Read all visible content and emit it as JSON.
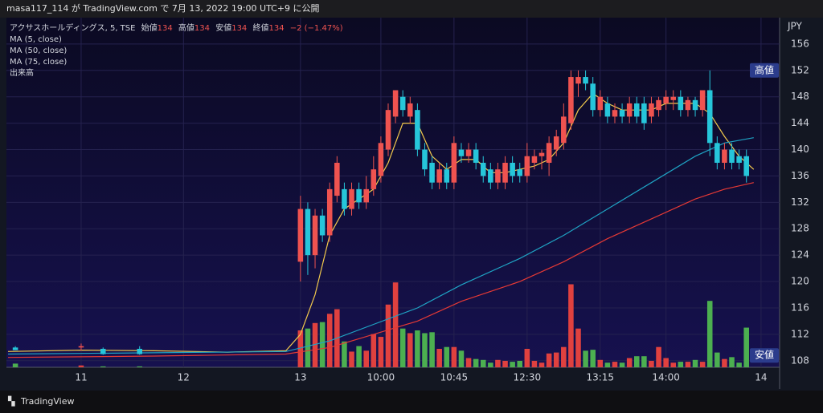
{
  "header": "masa117_114 が TradingView.com で 7月 13, 2022 19:00 UTC+9 に公開",
  "brand": "TradingView",
  "chart_data": {
    "type": "candlestick",
    "symbol": "アクサスホールディングス, 5, TSE",
    "ohlc_legend": [
      {
        "label": "始値",
        "value": 134
      },
      {
        "label": "高値",
        "value": 134
      },
      {
        "label": "安値",
        "value": 134
      },
      {
        "label": "終値",
        "value": 134
      }
    ],
    "change_text": "−2 (−1.47%)",
    "currency": "JPY",
    "volume_name": "出来高",
    "up_color": "#ef5350",
    "down_color": "#26c6da",
    "volume_up_color": "#e0413f",
    "volume_down_color": "#4caf50",
    "ylim": [
      107,
      160
    ],
    "yticks": [
      108,
      112,
      116,
      120,
      124,
      128,
      132,
      136,
      140,
      144,
      148,
      152,
      156
    ],
    "volume_lim": [
      0,
      100
    ],
    "xlim": [
      0,
      104
    ],
    "xticks": [
      {
        "value": 10,
        "label": "11"
      },
      {
        "value": 24,
        "label": "12"
      },
      {
        "value": 40,
        "label": "13"
      },
      {
        "value": 51,
        "label": "10:00"
      },
      {
        "value": 61,
        "label": "10:45"
      },
      {
        "value": 71,
        "label": "12:30"
      },
      {
        "value": 81,
        "label": "13:15"
      },
      {
        "value": 90,
        "label": "14:00"
      },
      {
        "value": 103,
        "label": "14"
      }
    ],
    "grid": true,
    "x": [
      1,
      10,
      13,
      18,
      40,
      41,
      42,
      43,
      44,
      45,
      46,
      47,
      48,
      49,
      50,
      51,
      52,
      53,
      54,
      55,
      56,
      57,
      58,
      59,
      60,
      61,
      62,
      63,
      64,
      65,
      66,
      67,
      68,
      69,
      70,
      71,
      72,
      73,
      74,
      75,
      76,
      77,
      78,
      79,
      80,
      81,
      82,
      83,
      84,
      85,
      86,
      87,
      88,
      89,
      90,
      91,
      92,
      93,
      94,
      95,
      96,
      97,
      98,
      99,
      100,
      101
    ],
    "open": [
      110,
      110,
      109.8,
      109.8,
      123,
      131,
      124,
      130,
      127,
      133,
      134,
      131,
      134,
      132,
      134,
      136,
      140,
      145,
      148,
      145,
      146,
      140,
      138,
      135,
      137,
      135,
      140,
      139,
      140,
      138,
      137,
      135,
      135,
      138,
      137,
      136,
      138,
      139,
      138,
      140,
      141,
      144,
      150,
      151,
      150,
      146,
      147,
      145,
      146,
      145,
      147,
      147,
      145,
      146,
      147,
      147.5,
      148,
      146,
      147.5,
      146,
      149,
      141,
      138,
      140,
      139,
      139
    ],
    "high": [
      110.2,
      110.6,
      110,
      110.2,
      133,
      132,
      131,
      131,
      135,
      139,
      135,
      135,
      135,
      136,
      139,
      142,
      147,
      149,
      149,
      148,
      147,
      141,
      139,
      138,
      138,
      142,
      141,
      141,
      141,
      139,
      138,
      138,
      139,
      139,
      138,
      141,
      140,
      140,
      142,
      143,
      147,
      152,
      152,
      152,
      151,
      149,
      148,
      147,
      147,
      148,
      148,
      148,
      148,
      148,
      149,
      149,
      149,
      148,
      148,
      149,
      152,
      142,
      141,
      141,
      140,
      140
    ],
    "low": [
      109.6,
      109.5,
      108.9,
      108.9,
      120,
      121,
      122,
      126,
      126,
      132,
      130,
      130,
      131,
      131,
      133,
      135,
      139,
      144,
      145,
      144,
      139,
      136,
      134,
      134,
      134,
      134,
      138,
      138,
      137,
      135,
      134,
      134,
      134,
      135,
      135,
      135,
      137,
      137,
      136,
      139,
      140,
      143,
      148,
      149,
      145,
      145,
      144,
      144,
      144,
      144,
      144,
      143,
      144,
      145,
      146,
      146,
      145,
      145,
      145,
      145,
      139,
      137,
      137,
      137,
      137,
      135
    ],
    "close": [
      109.6,
      110.2,
      109,
      109,
      131,
      124,
      130,
      127,
      134,
      138,
      131,
      134,
      132,
      134,
      137,
      141,
      146,
      149,
      146,
      147,
      140,
      137,
      135,
      137,
      135,
      141,
      139,
      140,
      138,
      136,
      135,
      137,
      138,
      136,
      136,
      139,
      139,
      139.5,
      141,
      142,
      145,
      151,
      151,
      150,
      146,
      148,
      145,
      146,
      145,
      147,
      145,
      144,
      147,
      147.5,
      148,
      148,
      146,
      147.5,
      146,
      149,
      141,
      138,
      140,
      138,
      138,
      136
    ],
    "volume": [
      4,
      2,
      1,
      1,
      40,
      42,
      48,
      49,
      58,
      63,
      28,
      17,
      23,
      18,
      36,
      33,
      68,
      92,
      42,
      37,
      40,
      37,
      38,
      20,
      22,
      22,
      18,
      10,
      9,
      8,
      5,
      8,
      7,
      6,
      7,
      20,
      7,
      5,
      15,
      16,
      22,
      90,
      42,
      18,
      19,
      8,
      5,
      6,
      5,
      10,
      12,
      12,
      7,
      22,
      10,
      5,
      6,
      6,
      8,
      6,
      72,
      16,
      9,
      11,
      5,
      43
    ],
    "series": [
      {
        "name": "MA (5, close)",
        "color": "#f2c94c",
        "x": [
          0,
          10,
          20,
          30,
          38,
          40,
          42,
          44,
          46,
          48,
          50,
          52,
          54,
          56,
          58,
          60,
          62,
          64,
          66,
          68,
          70,
          72,
          74,
          76,
          78,
          80,
          82,
          84,
          86,
          88,
          90,
          92,
          94,
          96,
          98,
          100,
          102
        ],
        "values": [
          109.4,
          109.6,
          109.5,
          109.3,
          109.5,
          112,
          118,
          127,
          131,
          132.5,
          134,
          138,
          144,
          144,
          139,
          137,
          138.5,
          138.5,
          136.5,
          136.5,
          137,
          137.5,
          138.5,
          141,
          146,
          148.5,
          147,
          146,
          146,
          146,
          147,
          147,
          147,
          145.5,
          142,
          139,
          137
        ]
      },
      {
        "name": "MA (50, close)",
        "color": "#1fa3c4",
        "x": [
          0,
          20,
          38,
          44,
          50,
          56,
          62,
          70,
          76,
          82,
          88,
          94,
          98,
          102
        ],
        "values": [
          109,
          109.2,
          109.4,
          111,
          113.5,
          116,
          119.5,
          123.5,
          127,
          131,
          135,
          139,
          141,
          141.8
        ]
      },
      {
        "name": "MA (75, close)",
        "color": "#e53935",
        "x": [
          0,
          20,
          38,
          44,
          50,
          56,
          62,
          70,
          76,
          82,
          88,
          94,
          98,
          102
        ],
        "values": [
          108.5,
          108.7,
          109,
          110,
          112,
          114,
          117,
          120,
          123,
          126.5,
          129.5,
          132.5,
          134,
          135
        ]
      }
    ],
    "markers": [
      {
        "label": "高値",
        "value": 152
      },
      {
        "label": "安値",
        "value": 108.8
      }
    ]
  }
}
